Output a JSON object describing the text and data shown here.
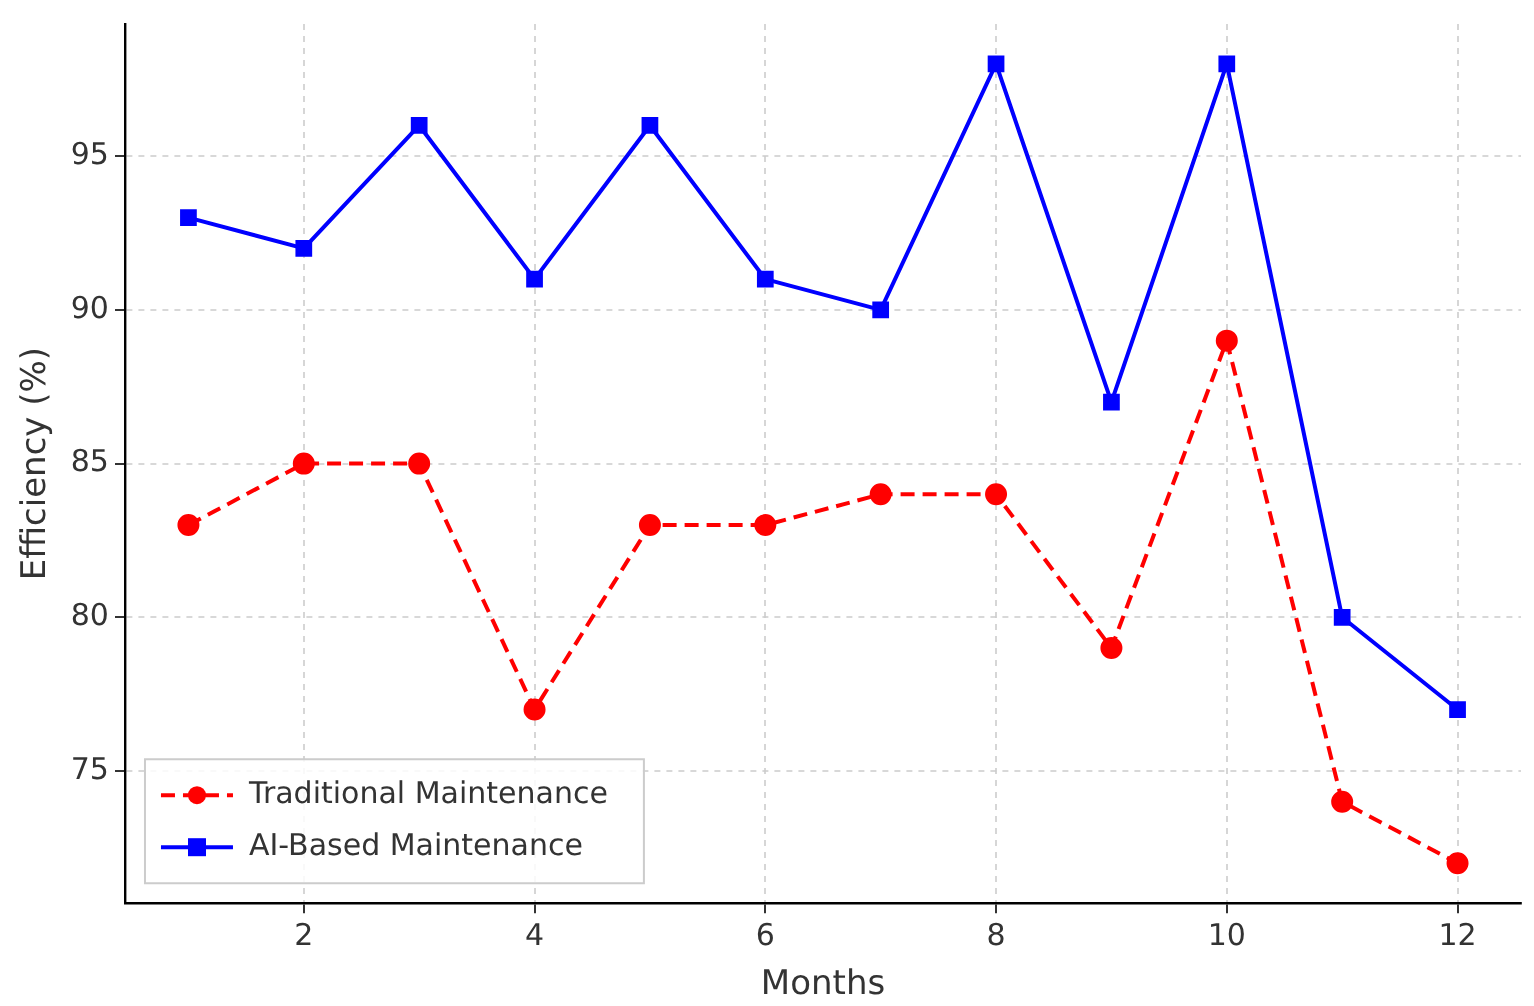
{
  "chart_data": {
    "type": "line",
    "xlabel": "Months",
    "ylabel": "Efficiency (%)",
    "x": [
      1,
      2,
      3,
      4,
      5,
      6,
      7,
      8,
      9,
      10,
      11,
      12
    ],
    "series": [
      {
        "name": "Traditional Maintenance",
        "color": "#ff0000",
        "marker": "circle",
        "line_style": "dashed",
        "values": [
          83,
          85,
          85,
          77,
          83,
          83,
          84,
          84,
          79,
          89,
          74,
          72
        ]
      },
      {
        "name": "AI-Based Maintenance",
        "color": "#0000ff",
        "marker": "square",
        "line_style": "solid",
        "values": [
          93,
          92,
          96,
          91,
          96,
          91,
          90,
          98,
          87,
          98,
          80,
          77
        ]
      }
    ],
    "xlim": [
      0.45,
      12.55
    ],
    "xticks": [
      2,
      4,
      6,
      8,
      10,
      12
    ],
    "ylim": [
      70.7,
      99.3
    ],
    "yticks": [
      75,
      80,
      85,
      90,
      95
    ],
    "grid": true,
    "legend": "bottom left"
  }
}
